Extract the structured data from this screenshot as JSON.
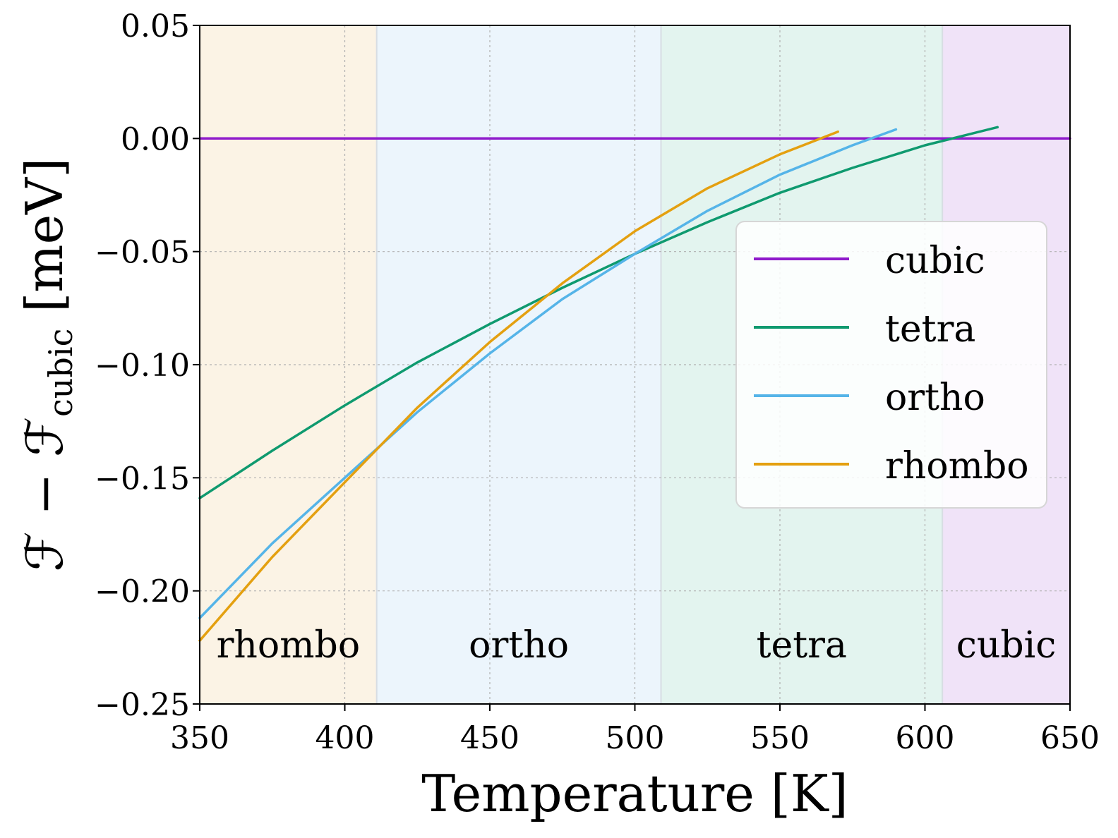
{
  "chart_data": {
    "type": "line",
    "xlabel": "Temperature [K]",
    "ylabel": {
      "main": "ℱ − ℱ",
      "subscript": "cubic",
      "unit": " [meV]"
    },
    "xlim": [
      350,
      650
    ],
    "ylim": [
      -0.25,
      0.05
    ],
    "x_ticks": [
      {
        "value": 350,
        "label": "350"
      },
      {
        "value": 400,
        "label": "400"
      },
      {
        "value": 450,
        "label": "450"
      },
      {
        "value": 500,
        "label": "500"
      },
      {
        "value": 550,
        "label": "550"
      },
      {
        "value": 600,
        "label": "600"
      },
      {
        "value": 650,
        "label": "650"
      }
    ],
    "y_ticks": [
      {
        "value": 0.05,
        "label": "0.05"
      },
      {
        "value": 0.0,
        "label": "0.00"
      },
      {
        "value": -0.05,
        "label": "−0.05"
      },
      {
        "value": -0.1,
        "label": "−0.10"
      },
      {
        "value": -0.15,
        "label": "−0.15"
      },
      {
        "value": -0.2,
        "label": "−0.20"
      },
      {
        "value": -0.25,
        "label": "−0.25"
      }
    ],
    "grid": true,
    "legend_position": "center-right",
    "regions": [
      {
        "label": "rhombo",
        "x_start": 350,
        "x_end": 411,
        "color": "#fbf3e5"
      },
      {
        "label": "ortho",
        "x_start": 411,
        "x_end": 509,
        "color": "#ecf5fc"
      },
      {
        "label": "tetra",
        "x_start": 509,
        "x_end": 606,
        "color": "#e3f4ef"
      },
      {
        "label": "cubic",
        "x_start": 606,
        "x_end": 650,
        "color": "#f0e3f8"
      }
    ],
    "series": [
      {
        "name": "cubic",
        "color": "#8f1acb",
        "x": [
          350,
          650
        ],
        "y": [
          0.0,
          0.0
        ]
      },
      {
        "name": "tetra",
        "color": "#0f9a6f",
        "x": [
          350,
          375,
          400,
          425,
          450,
          475,
          500,
          525,
          550,
          575,
          600,
          625
        ],
        "y": [
          -0.159,
          -0.138,
          -0.118,
          -0.099,
          -0.082,
          -0.066,
          -0.051,
          -0.037,
          -0.024,
          -0.013,
          -0.003,
          0.005
        ]
      },
      {
        "name": "ortho",
        "color": "#55b4e8",
        "x": [
          350,
          375,
          400,
          425,
          450,
          475,
          500,
          525,
          550,
          575,
          590
        ],
        "y": [
          -0.212,
          -0.179,
          -0.15,
          -0.121,
          -0.095,
          -0.071,
          -0.051,
          -0.032,
          -0.016,
          -0.003,
          0.004
        ]
      },
      {
        "name": "rhombo",
        "color": "#e4a010",
        "x": [
          350,
          375,
          400,
          425,
          450,
          475,
          500,
          525,
          550,
          570
        ],
        "y": [
          -0.222,
          -0.185,
          -0.152,
          -0.119,
          -0.09,
          -0.064,
          -0.041,
          -0.022,
          -0.007,
          0.003
        ]
      }
    ]
  }
}
